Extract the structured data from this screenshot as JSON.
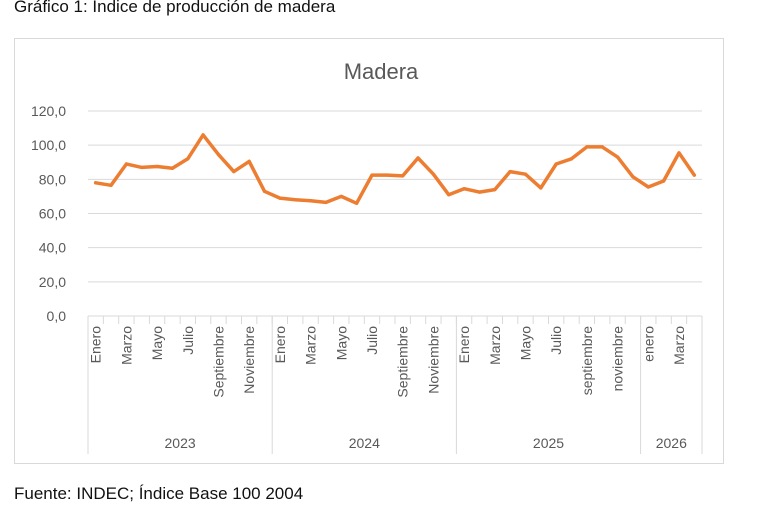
{
  "page": {
    "figure_title": "Gráfico 1: Índice de producción de madera",
    "source": "Fuente: INDEC; Índice Base 100 2004"
  },
  "colors": {
    "line": "#ED7D31",
    "grid": "#D9D9D9",
    "axis_text": "#595959"
  },
  "chart_data": {
    "type": "line",
    "title": "Madera",
    "xlabel": "",
    "ylabel": "",
    "ylim": [
      0,
      120
    ],
    "yticks": [
      "0,0",
      "20,0",
      "40,0",
      "60,0",
      "80,0",
      "100,0",
      "120,0"
    ],
    "grid": true,
    "legend": false,
    "categories": [
      "Enero",
      "",
      "Marzo",
      "",
      "Mayo",
      "",
      "Julio",
      "",
      "Septiembre",
      "",
      "Noviembre",
      "",
      "Enero",
      "",
      "Marzo",
      "",
      "Mayo",
      "",
      "Julio",
      "",
      "Septiembre",
      "",
      "Noviembre",
      "",
      "Enero",
      "",
      "Marzo",
      "",
      "Mayo",
      "",
      "Julio",
      "",
      "septiembre",
      "",
      "noviembre",
      "",
      "enero",
      "",
      "Marzo",
      ""
    ],
    "groups": [
      {
        "label": "2023",
        "count": 12
      },
      {
        "label": "2024",
        "count": 12
      },
      {
        "label": "2025",
        "count": 12
      },
      {
        "label": "2026",
        "count": 4
      }
    ],
    "series": [
      {
        "values": [
          78.0,
          76.5,
          89.0,
          87.0,
          87.5,
          86.5,
          92.0,
          106.0,
          94.5,
          84.5,
          90.5,
          73.0,
          69.0,
          68.0,
          67.5,
          66.5,
          70.0,
          66.0,
          82.5,
          82.5,
          82.0,
          92.5,
          83.0,
          71.0,
          74.5,
          72.5,
          74.0,
          84.5,
          83.0,
          75.0,
          89.0,
          92.0,
          99.0,
          99.0,
          93.0,
          81.5,
          75.5,
          79.0,
          95.5,
          82.5
        ]
      }
    ]
  }
}
